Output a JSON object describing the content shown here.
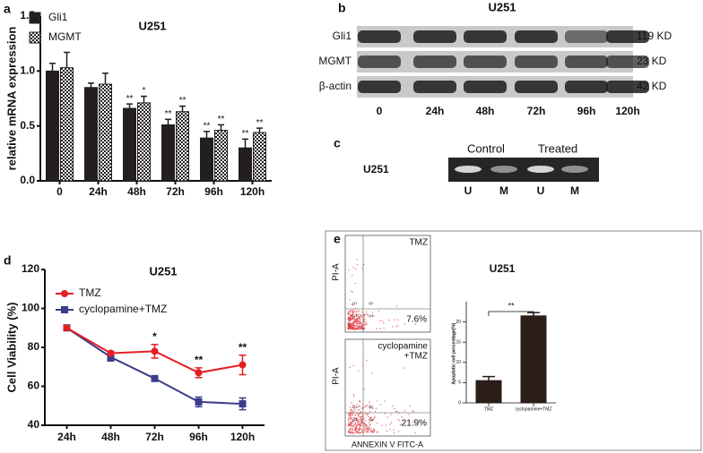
{
  "chart_data": [
    {
      "type": "bar",
      "panel": "a",
      "title": "U251",
      "y_label": "relative mRNA expression",
      "categories": [
        "0",
        "24h",
        "48h",
        "72h",
        "96h",
        "120h"
      ],
      "series": [
        {
          "name": "Gli1",
          "color": "#231f20",
          "pattern": "solid",
          "values": [
            1.0,
            0.85,
            0.66,
            0.51,
            0.39,
            0.3
          ],
          "errors": [
            0.07,
            0.04,
            0.04,
            0.05,
            0.06,
            0.08
          ],
          "significance": [
            null,
            null,
            "**",
            "**",
            "**",
            "**"
          ]
        },
        {
          "name": "MGMT",
          "color": "#231f20",
          "pattern": "checker",
          "values": [
            1.03,
            0.88,
            0.71,
            0.63,
            0.46,
            0.44
          ],
          "errors": [
            0.14,
            0.1,
            0.06,
            0.05,
            0.05,
            0.04
          ],
          "significance": [
            null,
            null,
            "*",
            "**",
            "**",
            "**"
          ]
        }
      ],
      "ylim": [
        0,
        1.5
      ],
      "yticks": [
        {
          "value": 0,
          "label": "0.0"
        },
        {
          "value": 0.5,
          "label": "0.5"
        },
        {
          "value": 1,
          "label": "1.0"
        },
        {
          "value": 1.5,
          "label": "1.5"
        }
      ]
    },
    {
      "type": "line",
      "panel": "d",
      "title": "U251",
      "y_label": "Cell Viability (%)",
      "categories": [
        "24h",
        "48h",
        "72h",
        "96h",
        "120h"
      ],
      "series": [
        {
          "name": "TMZ",
          "color": "#e31e24",
          "marker": "circle",
          "values": [
            90,
            77,
            78,
            67,
            71
          ],
          "errors": [
            1,
            1,
            3.5,
            2.5,
            5
          ]
        },
        {
          "name": "cyclopamine+TMZ",
          "color": "#3b3c8c",
          "marker": "square",
          "values": [
            90,
            75,
            64,
            52,
            51
          ],
          "errors": [
            1,
            2,
            1,
            2.5,
            3
          ]
        }
      ],
      "significance": [
        null,
        null,
        "*",
        "**",
        "**"
      ],
      "ylim": [
        40,
        120
      ],
      "yticks": [
        40,
        60,
        80,
        100,
        120
      ]
    },
    {
      "type": "bar",
      "title": "U251",
      "y_label": "Apoptotic cell percentage(%)",
      "categories": [
        "TMZ",
        "cyclopamine+TMZ"
      ],
      "values": [
        5.5,
        21.5
      ],
      "errors": [
        1,
        0.8
      ],
      "color": "#2b1d17",
      "comparison": "**",
      "ylim": [
        0,
        25
      ],
      "yticks": [
        0,
        5,
        10,
        15,
        20
      ]
    }
  ],
  "blot": {
    "panel": "b",
    "title": "U251",
    "rows": [
      {
        "name": "Gli1",
        "size": "119 KD"
      },
      {
        "name": "MGMT",
        "size": "23 KD"
      },
      {
        "name": "β-actin",
        "size": "42 KD"
      }
    ],
    "lanes": [
      "0",
      "24h",
      "48h",
      "72h",
      "96h",
      "120h"
    ]
  },
  "gel": {
    "panel": "c",
    "cell_line": "U251",
    "groups": [
      "Control",
      "Treated"
    ],
    "lanes": [
      "U",
      "M",
      "U",
      "M"
    ]
  },
  "flow": {
    "panel": "e",
    "y_label": "PI-A",
    "x_label": "ANNEXIN V FITC-A",
    "quadrants": [
      "Q1",
      "Q2",
      "Q3",
      "Q4"
    ],
    "plots": [
      {
        "label": [
          "TMZ"
        ],
        "percent": "7.6%"
      },
      {
        "label": [
          "cyclopamine",
          "+TMZ"
        ],
        "percent": "21.9%"
      }
    ]
  }
}
